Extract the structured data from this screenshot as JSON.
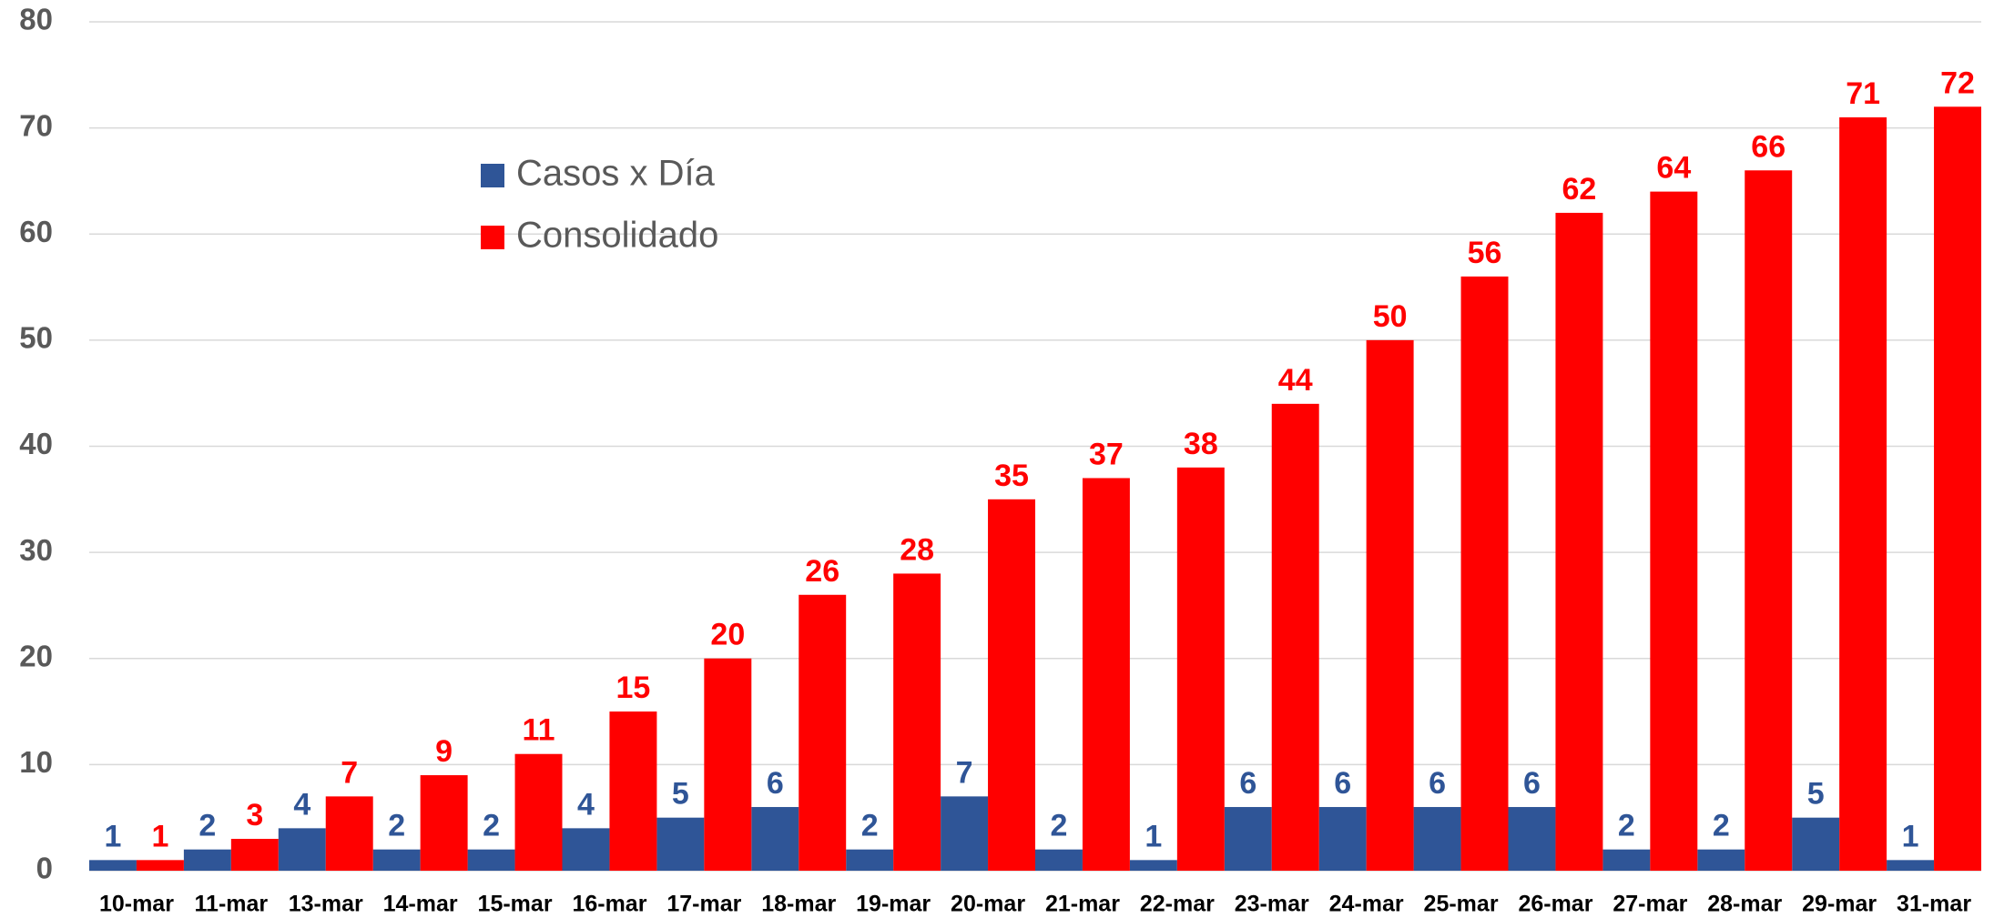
{
  "chart_data": {
    "type": "bar",
    "categories": [
      "10-mar",
      "11-mar",
      "13-mar",
      "14-mar",
      "15-mar",
      "16-mar",
      "17-mar",
      "18-mar",
      "19-mar",
      "20-mar",
      "21-mar",
      "22-mar",
      "23-mar",
      "24-mar",
      "25-mar",
      "26-mar",
      "27-mar",
      "28-mar",
      "29-mar",
      "31-mar"
    ],
    "series": [
      {
        "name": "Casos x Día",
        "color": "#2f5597",
        "values": [
          1,
          2,
          4,
          2,
          2,
          4,
          5,
          6,
          2,
          7,
          2,
          1,
          6,
          6,
          6,
          6,
          2,
          2,
          5,
          1
        ]
      },
      {
        "name": "Consolidado",
        "color": "#ff0000",
        "values": [
          1,
          3,
          7,
          9,
          11,
          15,
          20,
          26,
          28,
          35,
          37,
          38,
          44,
          50,
          56,
          62,
          64,
          66,
          71,
          72
        ]
      }
    ],
    "ylim": [
      0,
      80
    ],
    "yticks": [
      0,
      10,
      20,
      30,
      40,
      50,
      60,
      70,
      80
    ],
    "grid": true,
    "legend": "top-left"
  }
}
